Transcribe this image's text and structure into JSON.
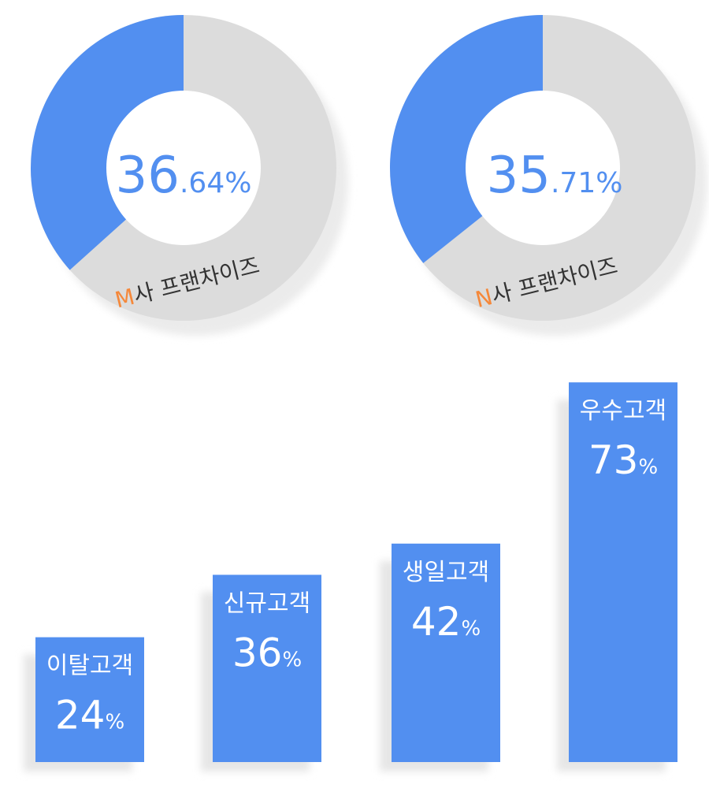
{
  "chart_data": [
    {
      "type": "pie",
      "subtype": "donut",
      "prefix": "M",
      "label": "사 프랜차이즈",
      "value": 36.64,
      "value_int": "36",
      "value_dec": ".64%",
      "remainder": 63.36
    },
    {
      "type": "pie",
      "subtype": "donut",
      "prefix": "N",
      "label": "사 프랜차이즈",
      "value": 35.71,
      "value_int": "35",
      "value_dec": ".71%",
      "remainder": 64.29
    },
    {
      "type": "bar",
      "unit": "%",
      "ylim": [
        0,
        100
      ],
      "categories": [
        "이탈고객",
        "신규고객",
        "생일고객",
        "우수고객"
      ],
      "values": [
        24,
        36,
        42,
        73
      ]
    }
  ],
  "colors": {
    "accent": "#528ff0",
    "track": "#dcdcdc",
    "shadow": "#e8e8e8",
    "prefix": "#f5883a",
    "label_text": "#333333",
    "bar_text": "#ffffff"
  }
}
